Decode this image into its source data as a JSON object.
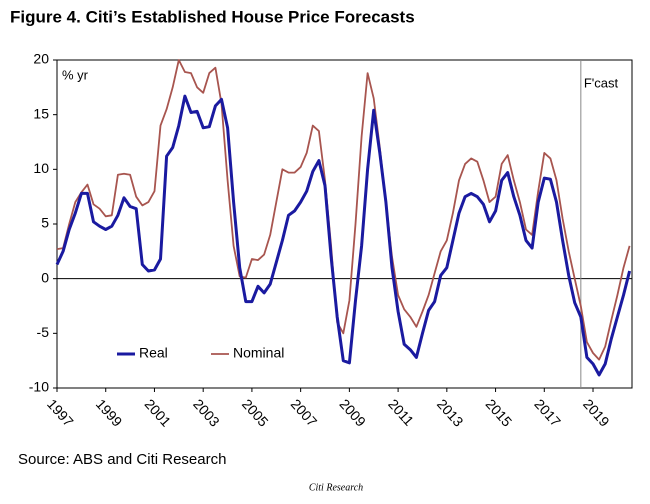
{
  "chart_data": {
    "type": "line",
    "title": "Figure 4. Citi’s Established House Price Forecasts",
    "y_unit": "% yr",
    "forecast_label": "F'cast",
    "forecast_start": 2018.5,
    "source": "Source: ABS and Citi Research",
    "footer": "Citi Research",
    "x": [
      1997,
      1997.25,
      1997.5,
      1997.75,
      1998,
      1998.25,
      1998.5,
      1998.75,
      1999,
      1999.25,
      1999.5,
      1999.75,
      2000,
      2000.25,
      2000.5,
      2000.75,
      2001,
      2001.25,
      2001.5,
      2001.75,
      2002,
      2002.25,
      2002.5,
      2002.75,
      2003,
      2003.25,
      2003.5,
      2003.75,
      2004,
      2004.25,
      2004.5,
      2004.75,
      2005,
      2005.25,
      2005.5,
      2005.75,
      2006,
      2006.25,
      2006.5,
      2006.75,
      2007,
      2007.25,
      2007.5,
      2007.75,
      2008,
      2008.25,
      2008.5,
      2008.75,
      2009,
      2009.25,
      2009.5,
      2009.75,
      2010,
      2010.25,
      2010.5,
      2010.75,
      2011,
      2011.25,
      2011.5,
      2011.75,
      2012,
      2012.25,
      2012.5,
      2012.75,
      2013,
      2013.25,
      2013.5,
      2013.75,
      2014,
      2014.25,
      2014.5,
      2014.75,
      2015,
      2015.25,
      2015.5,
      2015.75,
      2016,
      2016.25,
      2016.5,
      2016.75,
      2017,
      2017.25,
      2017.5,
      2017.75,
      2018,
      2018.25,
      2018.5,
      2018.75,
      2019,
      2019.25,
      2019.5,
      2019.75,
      2020,
      2020.25,
      2020.5
    ],
    "series": [
      {
        "name": "Real",
        "color": "#1a1aa0",
        "values": [
          1.3,
          2.5,
          4.5,
          6,
          7.8,
          7.8,
          5.2,
          4.8,
          4.5,
          4.8,
          5.8,
          7.4,
          6.6,
          6.4,
          1.3,
          0.7,
          0.8,
          1.8,
          11.2,
          12,
          14,
          16.7,
          15.2,
          15.3,
          13.8,
          13.9,
          15.8,
          16.4,
          13.8,
          7,
          1,
          -2.1,
          -2.1,
          -0.7,
          -1.3,
          -0.5,
          1.5,
          3.5,
          5.8,
          6.2,
          7,
          8,
          9.8,
          10.8,
          8.5,
          2,
          -3.5,
          -7.5,
          -7.7,
          -2,
          3,
          10,
          15.4,
          11.5,
          7,
          1,
          -3,
          -6,
          -6.5,
          -7.2,
          -5,
          -2.9,
          -2.1,
          0.3,
          1,
          3.5,
          6,
          7.5,
          7.8,
          7.5,
          6.8,
          5.2,
          6.2,
          9,
          9.7,
          7.5,
          5.8,
          3.5,
          2.8,
          7,
          9.2,
          9.1,
          7,
          3.5,
          0.3,
          -2.2,
          -3.5,
          -7.2,
          -7.8,
          -8.8,
          -7.8,
          -5.5,
          -3.5,
          -1.5,
          0.7
        ]
      },
      {
        "name": "Nominal",
        "color": "#a8554f",
        "values": [
          2.7,
          2.8,
          5,
          7,
          7.9,
          8.6,
          6.8,
          6.4,
          5.7,
          5.8,
          9.5,
          9.6,
          9.5,
          7.5,
          6.7,
          7,
          8,
          14,
          15.5,
          17.5,
          20,
          18.9,
          18.8,
          17.5,
          17,
          18.8,
          19.3,
          16,
          9,
          3,
          0.2,
          0.1,
          1.8,
          1.7,
          2.2,
          4,
          7,
          10,
          9.7,
          9.7,
          10.2,
          11.5,
          14,
          13.5,
          9,
          3,
          -4,
          -5,
          -2,
          5,
          13,
          18.8,
          16.5,
          12,
          7,
          2,
          -1.5,
          -2.8,
          -3.5,
          -4.4,
          -3,
          -1.5,
          0.5,
          2.5,
          3.5,
          6,
          9,
          10.5,
          11,
          10.7,
          9,
          7,
          7.5,
          10.5,
          11.3,
          9,
          7,
          4.5,
          4,
          8,
          11.5,
          11,
          9,
          5.5,
          2.5,
          0,
          -2.5,
          -5.8,
          -6.8,
          -7.4,
          -6.2,
          -3.8,
          -1.5,
          1,
          3
        ]
      }
    ],
    "xlim": [
      1997,
      2020.6
    ],
    "xticks": [
      1997,
      1999,
      2001,
      2003,
      2005,
      2007,
      2009,
      2011,
      2013,
      2015,
      2017,
      2019
    ],
    "ylim": [
      -10,
      20
    ],
    "yticks": [
      -10,
      -5,
      0,
      5,
      10,
      15,
      20
    ],
    "grid": false,
    "legend": "lower-left"
  }
}
